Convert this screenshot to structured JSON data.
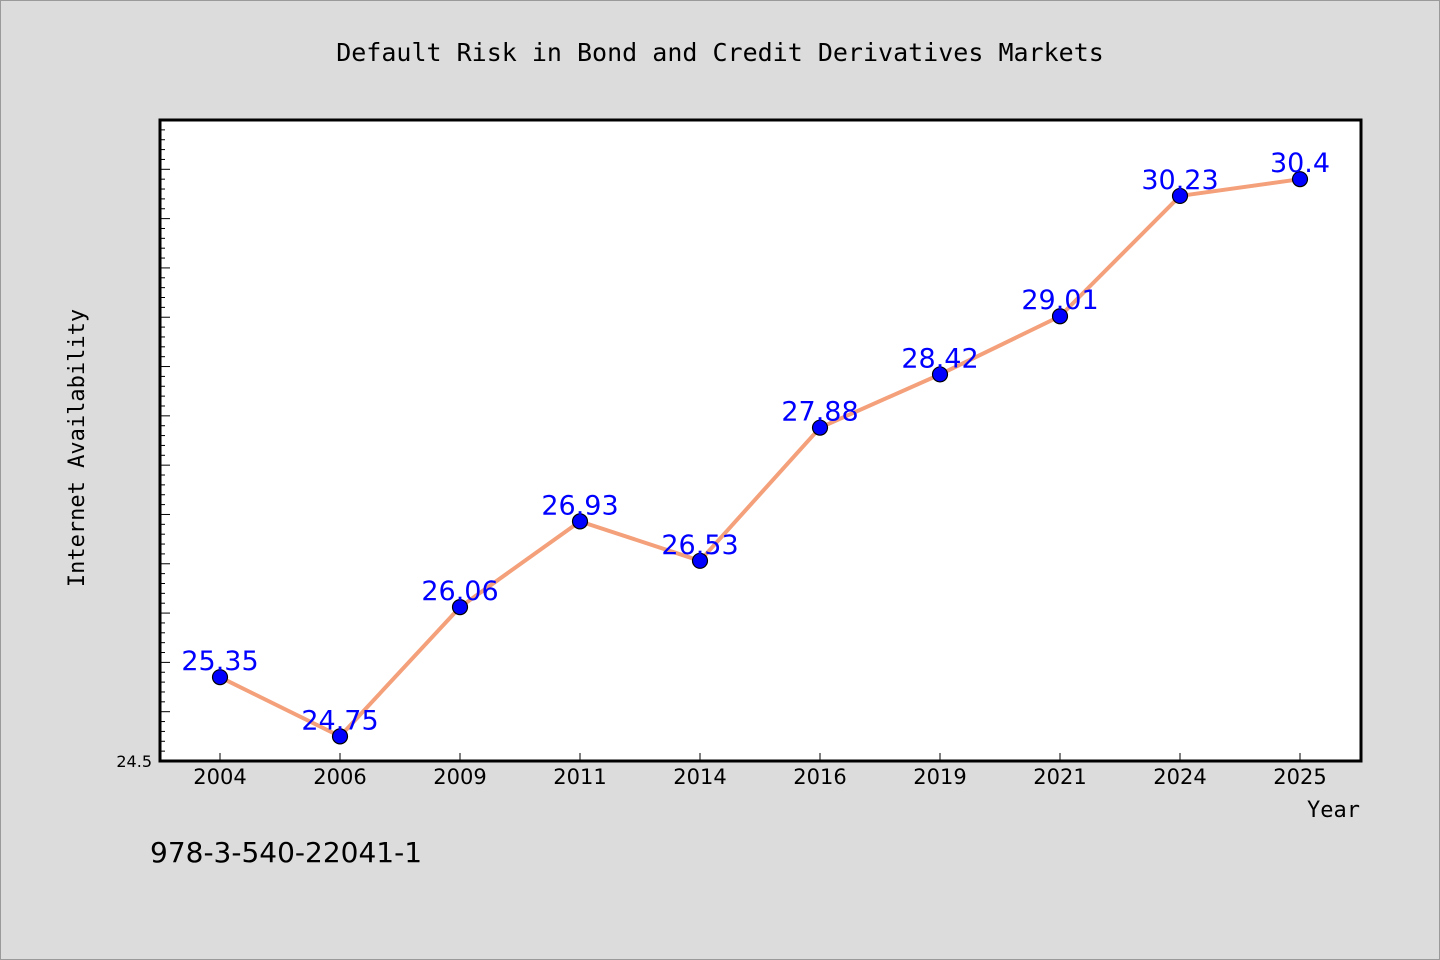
{
  "colors": {
    "background": "#dcdcdc",
    "plot_bg": "#ffffff",
    "line": "#f4a07a",
    "marker": "#0000ff",
    "label": "#0000ff",
    "text": "#000000"
  },
  "footer_text": "978-3-540-22041-1",
  "chart_data": {
    "type": "line",
    "title": "Default Risk in Bond and Credit Derivatives Markets",
    "xlabel": "Year",
    "ylabel": "Internet Availability",
    "categories": [
      "2004",
      "2006",
      "2009",
      "2011",
      "2014",
      "2016",
      "2019",
      "2021",
      "2024",
      "2025"
    ],
    "series": [
      {
        "values": [
          25.35,
          24.75,
          26.06,
          26.93,
          26.53,
          27.88,
          28.42,
          29.01,
          30.23,
          30.4
        ]
      }
    ],
    "data_labels": [
      "25.35",
      "24.75",
      "26.06",
      "26.93",
      "26.53",
      "27.88",
      "28.42",
      "29.01",
      "30.23",
      "30.4"
    ],
    "ylim": [
      24.5,
      31.0
    ],
    "y_tick_labels": [
      "24.5"
    ],
    "grid": false,
    "legend": "none"
  }
}
